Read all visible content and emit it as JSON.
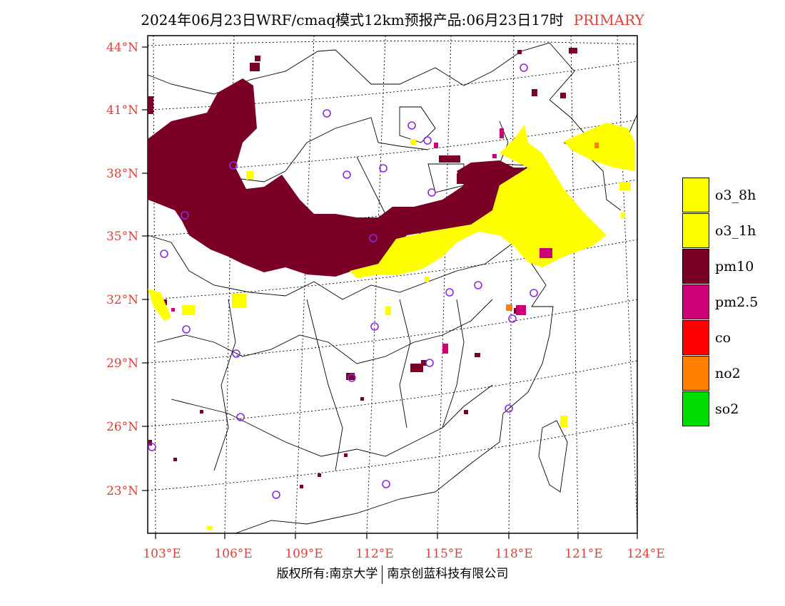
{
  "title": {
    "main": "2024年06月23日WRF/cmaq模式12km预报产品:06月23日17时",
    "tag": "PRIMARY"
  },
  "axes": {
    "lat_labels": [
      "44°N",
      "41°N",
      "38°N",
      "35°N",
      "32°N",
      "29°N",
      "26°N",
      "23°N"
    ],
    "lon_labels": [
      "103°E",
      "106°E",
      "109°E",
      "112°E",
      "115°E",
      "118°E",
      "121°E",
      "124°E"
    ]
  },
  "legend": [
    {
      "label": "o3_8h",
      "color": "#ffff00"
    },
    {
      "label": "o3_1h",
      "color": "#ffff00"
    },
    {
      "label": "pm10",
      "color": "#7a0026"
    },
    {
      "label": "pm2.5",
      "color": "#cc0077"
    },
    {
      "label": "co",
      "color": "#ff0000"
    },
    {
      "label": "no2",
      "color": "#ff7f00"
    },
    {
      "label": "so2",
      "color": "#00dd00"
    }
  ],
  "colors": {
    "pm10": "#7a0026",
    "o3": "#ffff00",
    "pm25": "#cc0077",
    "no2": "#ff7f00",
    "station": "#8a2be2",
    "label": "#e0403a"
  },
  "footer": {
    "left": "版权所有:南京大学",
    "right": "南京创蓝科技有限公司"
  }
}
